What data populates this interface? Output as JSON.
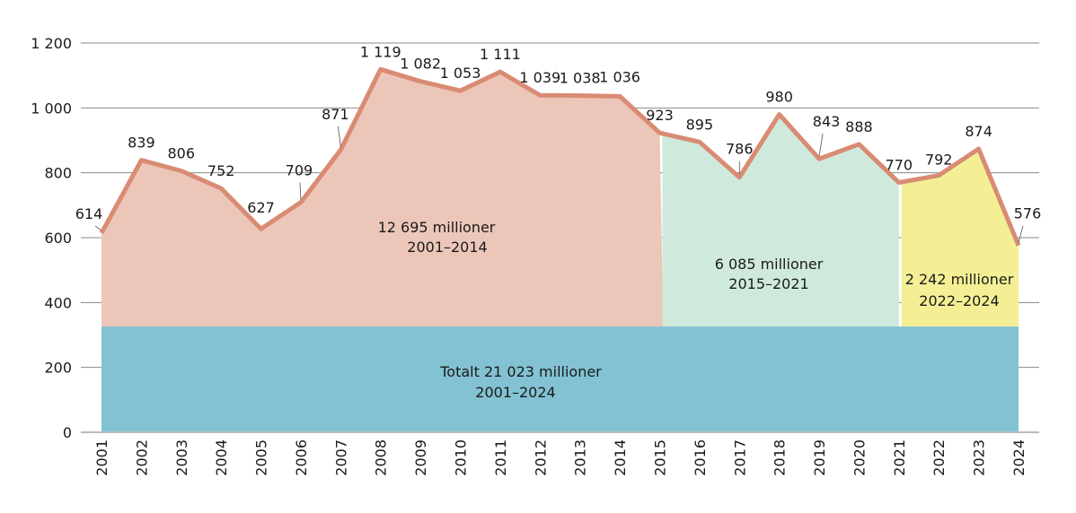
{
  "chart_data": {
    "type": "area",
    "title": "",
    "xlabel": "",
    "ylabel": "",
    "ylim": [
      0,
      1200
    ],
    "yticks": [
      0,
      200,
      400,
      600,
      800,
      1000,
      1200
    ],
    "ytick_labels": [
      "0",
      "200",
      "400",
      "600",
      "800",
      "1 000",
      "1 200"
    ],
    "grid": true,
    "x": [
      "2001",
      "2002",
      "2003",
      "2004",
      "2005",
      "2006",
      "2007",
      "2008",
      "2009",
      "2010",
      "2011",
      "2012",
      "2013",
      "2014",
      "2015",
      "2016",
      "2017",
      "2018",
      "2019",
      "2020",
      "2021",
      "2022",
      "2023",
      "2024"
    ],
    "values": [
      614,
      839,
      806,
      752,
      627,
      709,
      871,
      1119,
      1082,
      1053,
      1111,
      1039,
      1038,
      1036,
      923,
      895,
      786,
      980,
      843,
      888,
      770,
      792,
      874,
      576
    ],
    "value_labels": [
      "614",
      "839",
      "806",
      "752",
      "627",
      "709",
      "871",
      "1 119",
      "1 082",
      "1 053",
      "1 111",
      "1 039",
      "1 038",
      "1 036",
      "923",
      "895",
      "786",
      "980",
      "843",
      "888",
      "770",
      "792",
      "874",
      "576"
    ],
    "base_band_value": 326,
    "periods": [
      {
        "label": "12 695 millioner",
        "range": "2001–2014",
        "from": "2001",
        "to": "2015",
        "color": "#ecc6b9"
      },
      {
        "label": "6 085 millioner",
        "range": "2015–2021",
        "from": "2015",
        "to": "2021",
        "color": "#cfeadc"
      },
      {
        "label": "2 242 millioner",
        "range": "2022–2024",
        "from": "2021",
        "to": "2024",
        "color": "#f4ef95"
      }
    ],
    "total": {
      "label": "Totalt 21 023 millioner",
      "range": "2001–2024",
      "color": "#82c2d3"
    },
    "line_color": "#d98b73"
  }
}
